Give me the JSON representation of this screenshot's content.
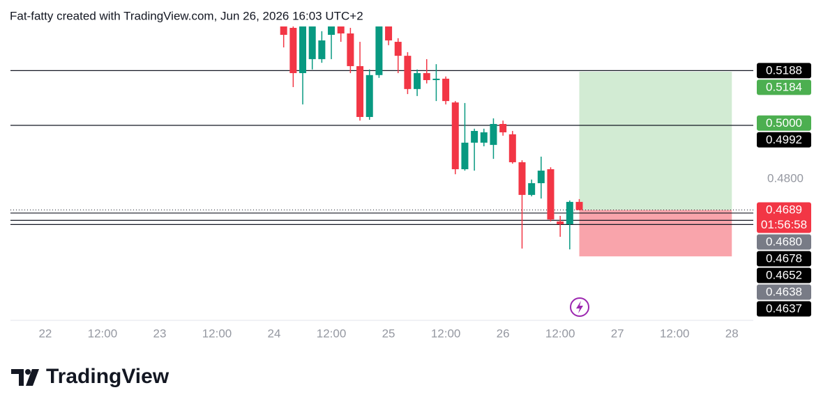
{
  "header": {
    "text": "Fat-fatty created with TradingView.com, Jun 26, 2026 16:03 UTC+2"
  },
  "footer": {
    "brand": "TradingView"
  },
  "chart_data": {
    "type": "candlestick",
    "colors": {
      "up": "#089981",
      "down": "#f23645"
    },
    "x": [
      50,
      52,
      54,
      56,
      58,
      60,
      62,
      64,
      66,
      68,
      70,
      72,
      74,
      76,
      78,
      80,
      82,
      84,
      86,
      88,
      90,
      92,
      94,
      96,
      98,
      100,
      102,
      104,
      106,
      108,
      110,
      112
    ],
    "open": [
      0.5346,
      0.5341,
      0.5179,
      0.5229,
      0.5229,
      0.5316,
      0.5346,
      0.5321,
      0.5204,
      0.5022,
      0.5172,
      0.5346,
      0.5291,
      0.5241,
      0.5122,
      0.5179,
      0.5154,
      0.5159,
      0.5074,
      0.4835,
      0.493,
      0.493,
      0.4922,
      0.4997,
      0.496,
      0.486,
      0.4743,
      0.4785,
      0.4835,
      0.4648,
      0.4638,
      0.4718
    ],
    "high": [
      0.5366,
      0.5366,
      0.5366,
      0.5366,
      0.5329,
      0.5366,
      0.5366,
      0.5341,
      0.5291,
      0.5192,
      0.5366,
      0.5366,
      0.5304,
      0.5254,
      0.5192,
      0.5229,
      0.5211,
      0.5167,
      0.5079,
      0.5072,
      0.498,
      0.498,
      0.5017,
      0.5009,
      0.4972,
      0.4867,
      0.4798,
      0.488,
      0.4842,
      0.4668,
      0.4723,
      0.4728
    ],
    "low": [
      0.5271,
      0.5129,
      0.5067,
      0.5192,
      0.5216,
      0.5229,
      0.5291,
      0.5179,
      0.5009,
      0.5012,
      0.5162,
      0.5279,
      0.5179,
      0.5104,
      0.5097,
      0.5142,
      0.5079,
      0.5067,
      0.4817,
      0.483,
      0.483,
      0.4917,
      0.4872,
      0.4955,
      0.4855,
      0.4551,
      0.4738,
      0.473,
      0.4648,
      0.4593,
      0.4548,
      0.4688
    ],
    "close": [
      0.5316,
      0.5179,
      0.5346,
      0.5346,
      0.5296,
      0.5346,
      0.5321,
      0.5204,
      0.5022,
      0.5172,
      0.5346,
      0.5296,
      0.5241,
      0.5122,
      0.5179,
      0.5154,
      0.5159,
      0.5079,
      0.4835,
      0.493,
      0.4972,
      0.4967,
      0.4997,
      0.4967,
      0.486,
      0.4743,
      0.4785,
      0.483,
      0.4655,
      0.4638,
      0.4718,
      0.4689
    ],
    "xlim": [
      -7.3,
      148.5
    ],
    "ylim": [
      0.4294,
      0.5346
    ],
    "xticks": [
      {
        "value": 0,
        "label": "22"
      },
      {
        "value": 12,
        "label": "12:00"
      },
      {
        "value": 24,
        "label": "23"
      },
      {
        "value": 36,
        "label": "12:00"
      },
      {
        "value": 48,
        "label": "24"
      },
      {
        "value": 60,
        "label": "12:00"
      },
      {
        "value": 72,
        "label": "25"
      },
      {
        "value": 84,
        "label": "12:00"
      },
      {
        "value": 96,
        "label": "26"
      },
      {
        "value": 108,
        "label": "12:00"
      },
      {
        "value": 120,
        "label": "27"
      },
      {
        "value": 132,
        "label": "12:00"
      },
      {
        "value": 144,
        "label": "28"
      }
    ],
    "yticks": [
      {
        "value": 0.48,
        "label": "0.4800"
      }
    ],
    "levels": [
      {
        "value": 0.5188,
        "label": "0.5188",
        "style": "black",
        "line": true
      },
      {
        "value": 0.5184,
        "label": "0.5184",
        "style": "green",
        "line": false
      },
      {
        "value": 0.5,
        "label": "0.5000",
        "style": "green",
        "line": false
      },
      {
        "value": 0.4992,
        "label": "0.4992",
        "style": "black",
        "line": true
      },
      {
        "value": 0.4689,
        "label": "0.4689",
        "style": "red",
        "line": false,
        "countdown": "01:56:58"
      },
      {
        "value": 0.468,
        "label": "0.4680",
        "style": "grey",
        "line": false
      },
      {
        "value": 0.4678,
        "label": "0.4678",
        "style": "black",
        "line": true
      },
      {
        "value": 0.4652,
        "label": "0.4652",
        "style": "black",
        "line": true
      },
      {
        "value": 0.4638,
        "label": "0.4638",
        "style": "grey",
        "line": false
      },
      {
        "value": 0.4637,
        "label": "0.4637",
        "style": "black",
        "line": true
      }
    ],
    "position": {
      "entry": 0.4689,
      "target": 0.5184,
      "stop": 0.4523,
      "x": [
        112,
        144
      ]
    }
  }
}
